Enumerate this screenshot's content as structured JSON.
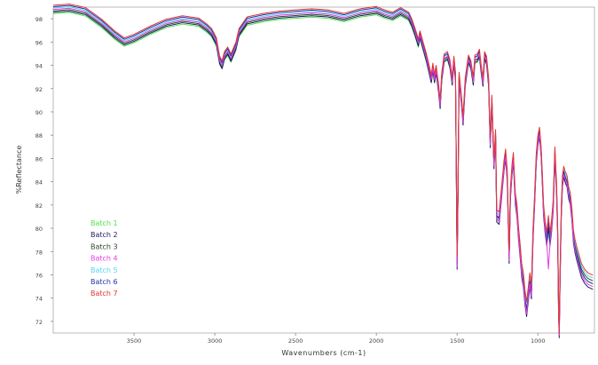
{
  "chart_data": {
    "type": "line",
    "title": "",
    "xlabel": "Wavenumbers (cm-1)",
    "ylabel": "%Reflectance",
    "xlim": [
      4000,
      650
    ],
    "ylim": [
      71,
      99
    ],
    "x_reversed": true,
    "xticks": [
      "3500",
      "3000",
      "2500",
      "2000",
      "1500",
      "1000"
    ],
    "xtick_values": [
      3500,
      3000,
      2500,
      2000,
      1500,
      1000
    ],
    "yticks": [
      "72",
      "74",
      "76",
      "78",
      "80",
      "82",
      "84",
      "86",
      "88",
      "90",
      "92",
      "94",
      "96",
      "98"
    ],
    "ytick_values": [
      72,
      74,
      76,
      78,
      80,
      82,
      84,
      86,
      88,
      90,
      92,
      94,
      96,
      98
    ],
    "grid": false,
    "legend_position": "left-center",
    "series": [
      {
        "name": "Batch 1",
        "color": "#4de34d"
      },
      {
        "name": "Batch 2",
        "color": "#1a1a66"
      },
      {
        "name": "Batch 3",
        "color": "#2a4a2a"
      },
      {
        "name": "Batch 4",
        "color": "#e040e0"
      },
      {
        "name": "Batch 5",
        "color": "#55d5f0"
      },
      {
        "name": "Batch 6",
        "color": "#2233aa"
      },
      {
        "name": "Batch 7",
        "color": "#e63333"
      }
    ],
    "base_curve": [
      [
        4000,
        98.8
      ],
      [
        3900,
        98.9
      ],
      [
        3800,
        98.6
      ],
      [
        3700,
        97.6
      ],
      [
        3620,
        96.6
      ],
      [
        3560,
        96.0
      ],
      [
        3500,
        96.3
      ],
      [
        3400,
        97.0
      ],
      [
        3300,
        97.6
      ],
      [
        3200,
        97.9
      ],
      [
        3100,
        97.7
      ],
      [
        3050,
        97.2
      ],
      [
        3020,
        96.8
      ],
      [
        2990,
        96.0
      ],
      [
        2970,
        94.4
      ],
      [
        2955,
        94.0
      ],
      [
        2940,
        94.8
      ],
      [
        2920,
        95.2
      ],
      [
        2900,
        94.6
      ],
      [
        2870,
        95.6
      ],
      [
        2850,
        96.8
      ],
      [
        2800,
        97.8
      ],
      [
        2700,
        98.1
      ],
      [
        2600,
        98.3
      ],
      [
        2500,
        98.4
      ],
      [
        2400,
        98.5
      ],
      [
        2300,
        98.4
      ],
      [
        2200,
        98.1
      ],
      [
        2150,
        98.3
      ],
      [
        2100,
        98.5
      ],
      [
        2000,
        98.7
      ],
      [
        1950,
        98.4
      ],
      [
        1900,
        98.2
      ],
      [
        1850,
        98.6
      ],
      [
        1800,
        98.2
      ],
      [
        1780,
        97.6
      ],
      [
        1760,
        96.8
      ],
      [
        1740,
        95.9
      ],
      [
        1730,
        96.6
      ],
      [
        1710,
        95.6
      ],
      [
        1690,
        94.6
      ],
      [
        1670,
        93.4
      ],
      [
        1660,
        92.8
      ],
      [
        1650,
        93.8
      ],
      [
        1640,
        92.8
      ],
      [
        1630,
        93.6
      ],
      [
        1615,
        92.0
      ],
      [
        1605,
        90.6
      ],
      [
        1595,
        93.0
      ],
      [
        1580,
        94.6
      ],
      [
        1560,
        94.8
      ],
      [
        1545,
        94.1
      ],
      [
        1530,
        92.6
      ],
      [
        1520,
        94.4
      ],
      [
        1510,
        93.0
      ],
      [
        1500,
        77.0
      ],
      [
        1495,
        82.5
      ],
      [
        1488,
        93.0
      ],
      [
        1475,
        91.2
      ],
      [
        1463,
        89.2
      ],
      [
        1450,
        92.5
      ],
      [
        1430,
        94.5
      ],
      [
        1415,
        94.0
      ],
      [
        1400,
        92.6
      ],
      [
        1390,
        94.5
      ],
      [
        1375,
        94.6
      ],
      [
        1362,
        95.0
      ],
      [
        1350,
        93.5
      ],
      [
        1340,
        92.5
      ],
      [
        1330,
        94.8
      ],
      [
        1318,
        94.4
      ],
      [
        1305,
        92.5
      ],
      [
        1295,
        87.3
      ],
      [
        1285,
        91.0
      ],
      [
        1272,
        85.5
      ],
      [
        1262,
        88.0
      ],
      [
        1255,
        81.0
      ],
      [
        1240,
        80.8
      ],
      [
        1225,
        83.0
      ],
      [
        1210,
        85.3
      ],
      [
        1200,
        86.3
      ],
      [
        1190,
        84.5
      ],
      [
        1178,
        77.5
      ],
      [
        1170,
        83.0
      ],
      [
        1160,
        85.0
      ],
      [
        1152,
        86.0
      ],
      [
        1140,
        82.5
      ],
      [
        1130,
        81.5
      ],
      [
        1120,
        79.5
      ],
      [
        1110,
        78.0
      ],
      [
        1100,
        76.3
      ],
      [
        1090,
        75.5
      ],
      [
        1080,
        74.0
      ],
      [
        1070,
        73.0
      ],
      [
        1060,
        74.2
      ],
      [
        1050,
        75.5
      ],
      [
        1040,
        74.5
      ],
      [
        1030,
        79.5
      ],
      [
        1020,
        82.5
      ],
      [
        1010,
        86.0
      ],
      [
        1000,
        87.5
      ],
      [
        990,
        88.2
      ],
      [
        980,
        86.5
      ],
      [
        972,
        84.0
      ],
      [
        965,
        81.5
      ],
      [
        955,
        80.0
      ],
      [
        945,
        79.0
      ],
      [
        935,
        80.5
      ],
      [
        925,
        79.0
      ],
      [
        915,
        80.2
      ],
      [
        905,
        82.0
      ],
      [
        895,
        86.5
      ],
      [
        885,
        83.5
      ],
      [
        878,
        80.0
      ],
      [
        872,
        73.0
      ],
      [
        868,
        71.2
      ],
      [
        862,
        76.5
      ],
      [
        855,
        81.5
      ],
      [
        848,
        84.0
      ],
      [
        840,
        84.8
      ],
      [
        830,
        84.3
      ],
      [
        820,
        84.0
      ],
      [
        810,
        83.0
      ],
      [
        800,
        82.5
      ],
      [
        790,
        81.2
      ],
      [
        780,
        79.2
      ],
      [
        770,
        78.4
      ],
      [
        760,
        77.8
      ],
      [
        750,
        77.3
      ],
      [
        740,
        76.8
      ],
      [
        730,
        76.3
      ],
      [
        710,
        75.8
      ],
      [
        690,
        75.5
      ],
      [
        660,
        75.3
      ]
    ]
  }
}
